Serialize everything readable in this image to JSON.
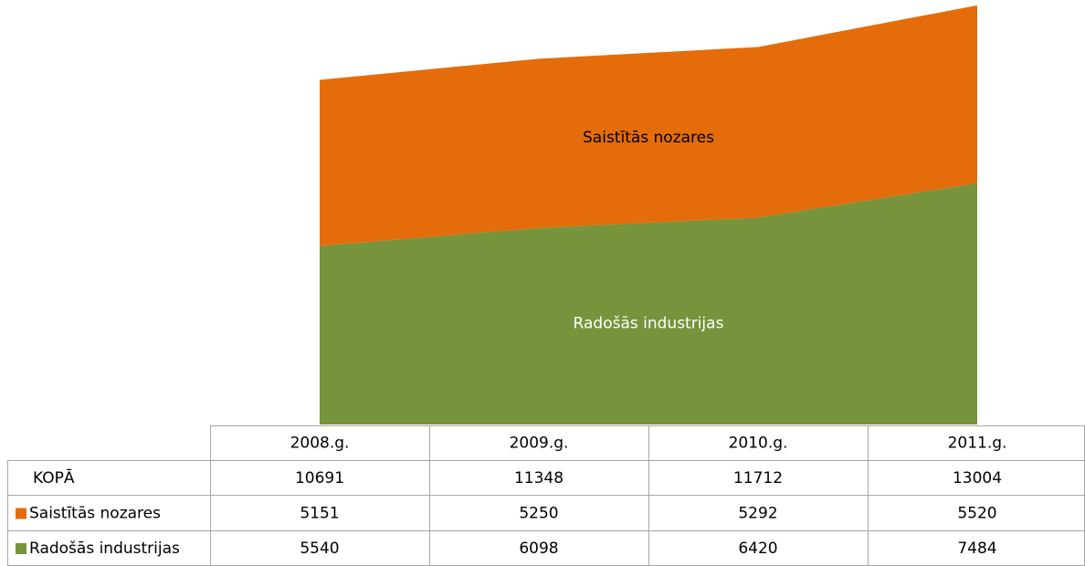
{
  "chart_data": {
    "type": "stacked_area",
    "categories": [
      "2008.g.",
      "2009.g.",
      "2010.g.",
      "2011.g."
    ],
    "series": [
      {
        "name": "Radošās industrijas",
        "color": "#77933c",
        "label_color": "#ffffff",
        "values": [
          5540,
          6098,
          6420,
          7484
        ]
      },
      {
        "name": "Saistītās nozares",
        "color": "#e46c0a",
        "label_color": "#000000",
        "values": [
          5151,
          5250,
          5292,
          5520
        ]
      }
    ],
    "total": {
      "name": "KOPĀ",
      "values": [
        10691,
        11348,
        11712,
        13004
      ]
    },
    "ylim": [
      0,
      13000
    ]
  }
}
